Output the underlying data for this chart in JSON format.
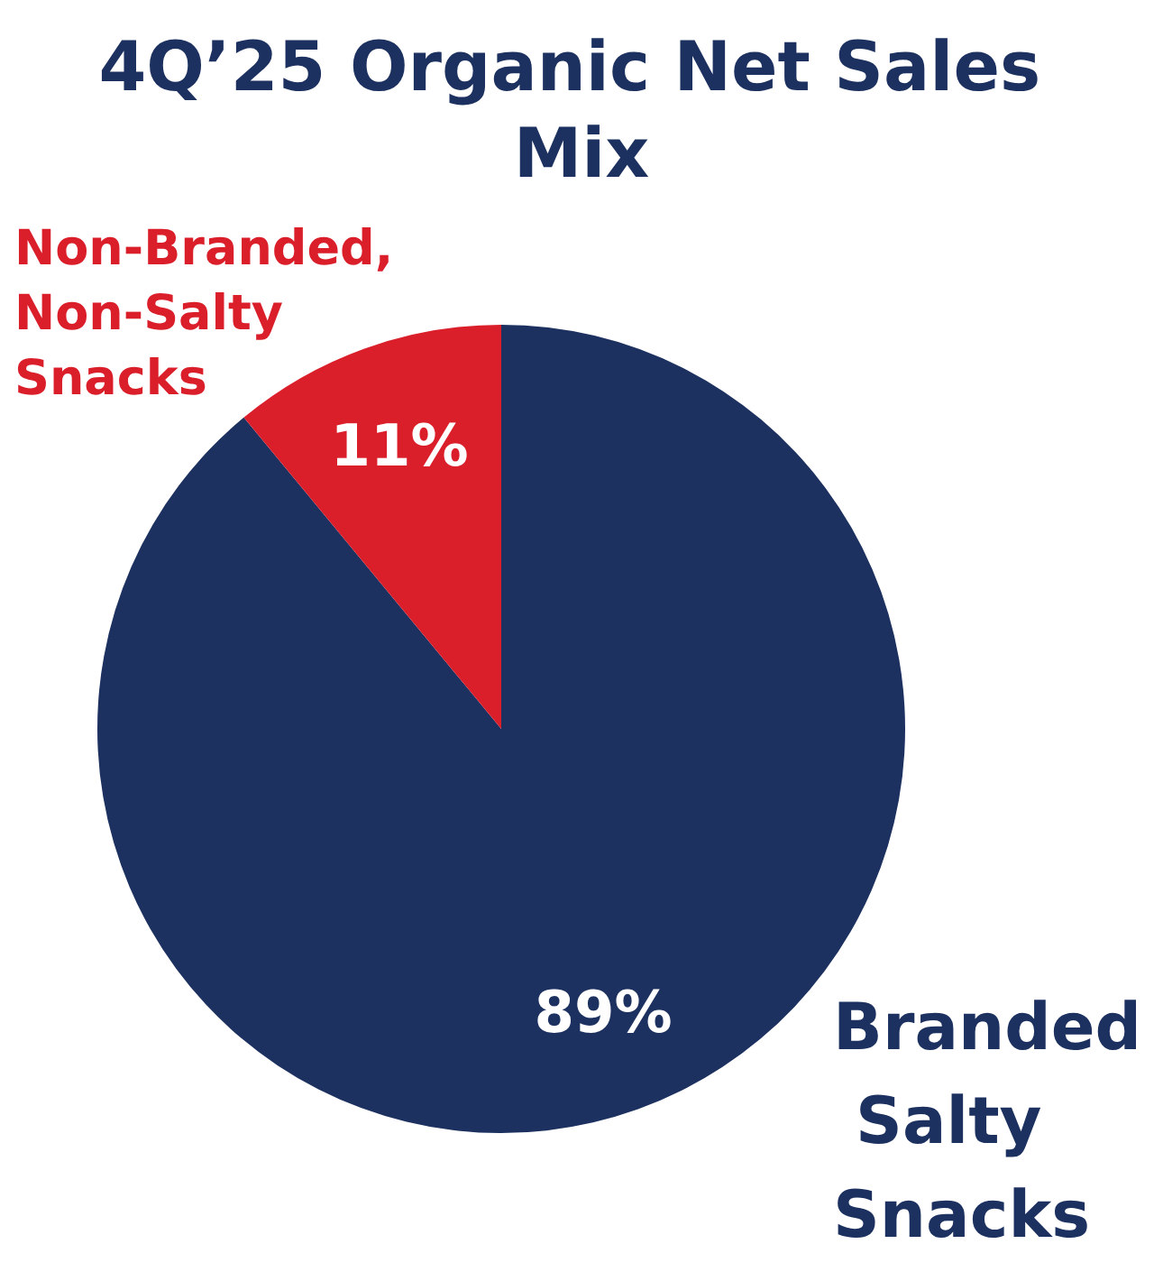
{
  "chart_data": {
    "type": "pie",
    "title": "4Q’25 Organic Net Sales Mix",
    "categories": [
      "Branded Salty Snacks",
      "Non-Branded, Non-Salty Snacks"
    ],
    "values": [
      89,
      11
    ],
    "colors": [
      "#1c3160",
      "#da1f2b"
    ],
    "value_labels": [
      "89%",
      "11%"
    ],
    "legend": false
  }
}
